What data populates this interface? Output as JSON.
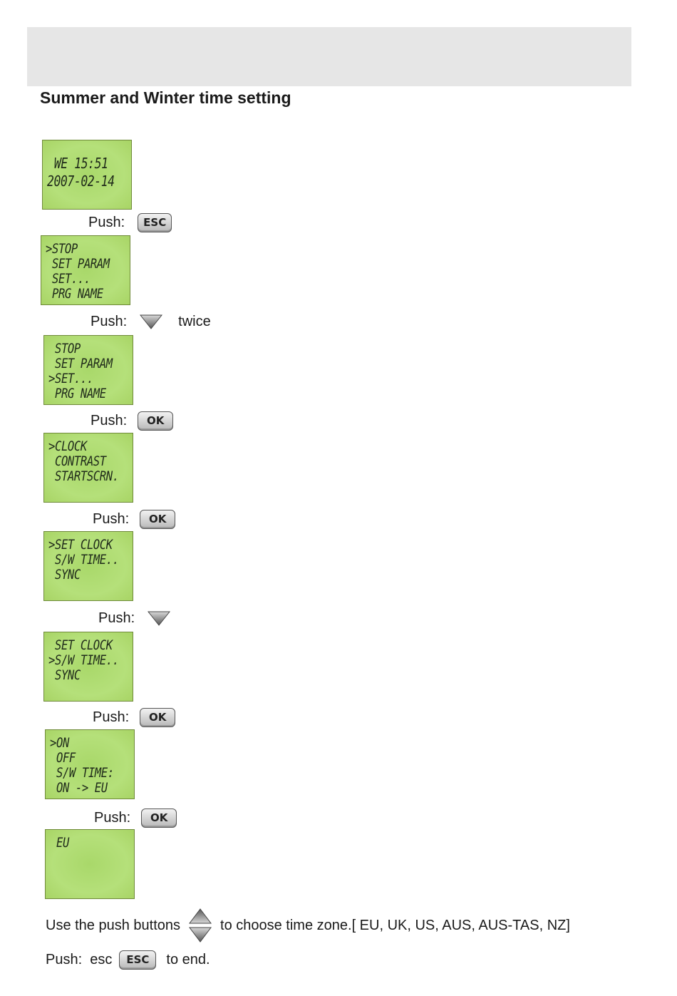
{
  "title": "Summer and Winter time setting",
  "screens": [
    {
      "lines": [
        "WE 15:51",
        "2007-02-14"
      ]
    },
    {
      "lines": [
        ">STOP",
        " SET PARAM",
        " SET...",
        " PRG NAME"
      ]
    },
    {
      "lines": [
        " STOP",
        " SET PARAM",
        ">SET...",
        " PRG NAME"
      ]
    },
    {
      "lines": [
        ">CLOCK",
        " CONTRAST",
        " STARTSCRN."
      ]
    },
    {
      "lines": [
        ">SET CLOCK",
        " S/W TIME..",
        " SYNC"
      ]
    },
    {
      "lines": [
        " SET CLOCK",
        ">S/W TIME..",
        " SYNC"
      ]
    },
    {
      "lines": [
        ">ON",
        " OFF",
        " S/W TIME:",
        " ON -> EU"
      ]
    },
    {
      "lines": [
        " EU"
      ]
    }
  ],
  "steps": [
    {
      "label": "Push:",
      "key": "ESC"
    },
    {
      "label": "Push:",
      "key": "down-arrow",
      "note": "twice"
    },
    {
      "label": "Push:",
      "key": "OK"
    },
    {
      "label": "Push:",
      "key": "OK"
    },
    {
      "label": "Push:",
      "key": "down-arrow"
    },
    {
      "label": "Push:",
      "key": "OK"
    },
    {
      "label": "Push:",
      "key": "OK"
    }
  ],
  "footer": {
    "line1_before": "Use the push buttons",
    "line1_after": "to choose time zone.[ EU, UK, US, AUS, AUS-TAS, NZ]",
    "line2_before": "Push:  esc",
    "line2_key": "ESC",
    "line2_after": "to end."
  },
  "colors": {
    "lcd": "#b2dc74",
    "banner": "#e6e6e6"
  }
}
